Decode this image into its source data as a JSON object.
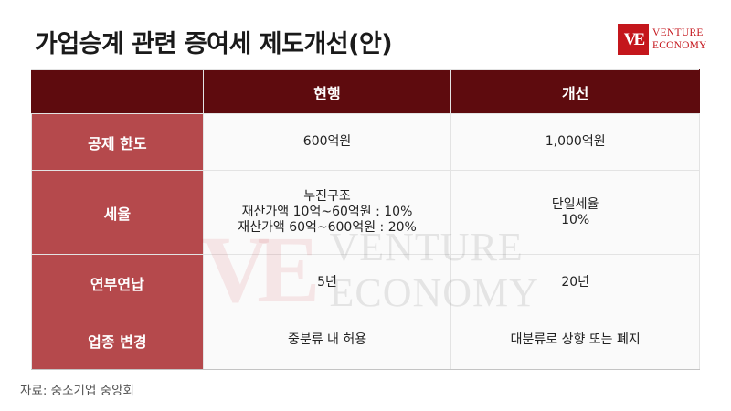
{
  "title": "가업승계 관련 증여세 제도개선(안)",
  "logo": {
    "mark": "VE",
    "line1": "VENTURE",
    "line2": "ECONOMY"
  },
  "table": {
    "columns": [
      "",
      "현행",
      "개선"
    ],
    "rows": [
      {
        "label": "공제 한도",
        "current": [
          "600억원"
        ],
        "improved": [
          "1,000억원"
        ]
      },
      {
        "label": "세율",
        "current": [
          "누진구조",
          "재산가액 10억~60억원 : 10%",
          "재산가액 60억~600억원 : 20%"
        ],
        "improved": [
          "단일세율",
          "10%"
        ]
      },
      {
        "label": "연부연납",
        "current": [
          "5년"
        ],
        "improved": [
          "20년"
        ]
      },
      {
        "label": "업종 변경",
        "current": [
          "중분류 내 허용"
        ],
        "improved": [
          "대분류로 상향 또는 폐지"
        ]
      }
    ]
  },
  "source": "자료: 중소기업 중앙회",
  "colors": {
    "header_bg": "#5e0b0e",
    "rowhead_bg": "#b5494c",
    "brand_red": "#c4161c"
  }
}
